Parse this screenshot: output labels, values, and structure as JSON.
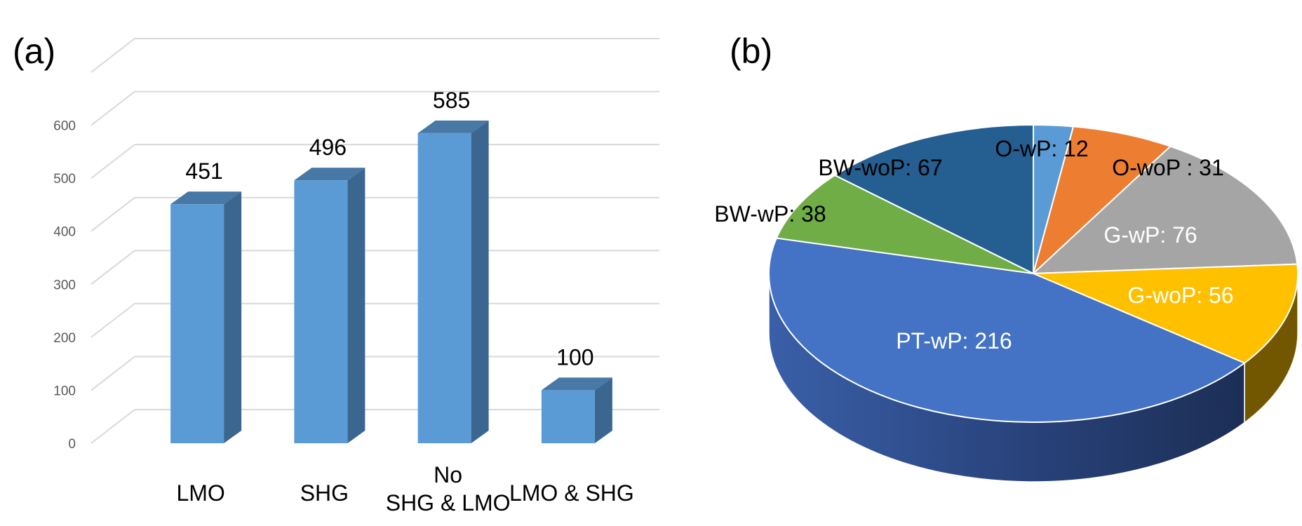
{
  "panels": [
    {
      "label": "(a)",
      "chart_data": {
        "type": "bar",
        "categories": [
          [
            "LMO"
          ],
          [
            "SHG"
          ],
          [
            "No",
            "SHG & LMO"
          ],
          [
            "LMO & SHG"
          ]
        ],
        "values": [
          451,
          496,
          585,
          100
        ],
        "data_labels": [
          "451",
          "496",
          "585",
          "100"
        ],
        "yticks": [
          "0",
          "100",
          "200",
          "300",
          "400",
          "500",
          "600"
        ],
        "ylim": [
          0,
          700
        ],
        "grid": true,
        "three_d": true,
        "colors": {
          "front": "#5b9bd5",
          "side": "#3a6690",
          "top": "#4878a6",
          "grid": "#d9d9d9"
        }
      }
    },
    {
      "label": "(b)",
      "chart_data": {
        "type": "pie",
        "three_d": true,
        "slices": [
          {
            "label": "O-wP: 12",
            "value": 12,
            "color": "#5b9bd5",
            "text_color": "#000000"
          },
          {
            "label": "O-woP : 31",
            "value": 31,
            "color": "#ed7d31",
            "text_color": "#000000"
          },
          {
            "label": "G-wP: 76",
            "value": 76,
            "color": "#a5a5a5",
            "text_color": "#ffffff"
          },
          {
            "label": "G-woP: 56",
            "value": 56,
            "color": "#ffc000",
            "text_color": "#ffffff"
          },
          {
            "label": "PT-wP: 216",
            "value": 216,
            "color": "#4472c4",
            "text_color": "#ffffff"
          },
          {
            "label": "BW-wP: 38",
            "value": 38,
            "color": "#70ad47",
            "text_color": "#000000"
          },
          {
            "label": "BW-woP: 67",
            "value": 67,
            "color": "#255e91",
            "text_color": "#000000"
          }
        ]
      }
    }
  ]
}
